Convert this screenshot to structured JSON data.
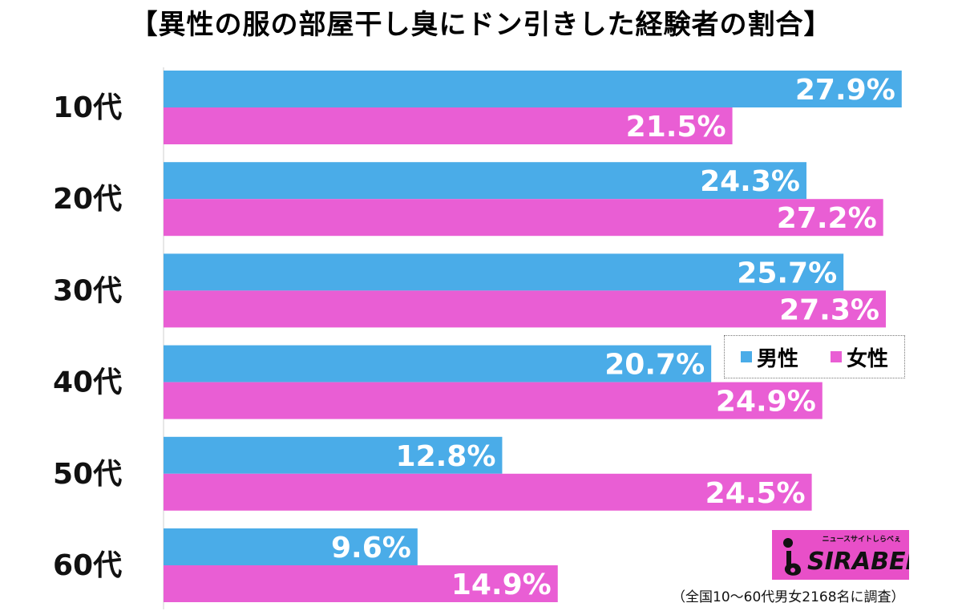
{
  "chart_data": {
    "type": "bar",
    "orientation": "horizontal",
    "title": "【異性の服の部屋干し臭にドン引きした経験者の割合】",
    "categories": [
      "10代",
      "20代",
      "30代",
      "40代",
      "50代",
      "60代"
    ],
    "series": [
      {
        "name": "男性",
        "color": "#4aace8",
        "values": [
          27.9,
          24.3,
          25.7,
          20.7,
          12.8,
          9.6
        ],
        "labels": [
          "27.9%",
          "24.3%",
          "25.7%",
          "20.7%",
          "12.8%",
          "9.6%"
        ]
      },
      {
        "name": "女性",
        "color": "#e95ed4",
        "values": [
          21.5,
          27.2,
          27.3,
          24.9,
          24.5,
          14.9
        ],
        "labels": [
          "21.5%",
          "27.2%",
          "27.3%",
          "24.9%",
          "24.5%",
          "14.9%"
        ]
      }
    ],
    "xlim": [
      0,
      30.3
    ],
    "xlabel": "",
    "ylabel": "",
    "grid": false,
    "legend_position": "right"
  },
  "logo": {
    "tagline": "ニュースサイトしらべぇ",
    "text": "SIRABEE"
  },
  "footnote": "（全国10〜60代男女2168名に調査）"
}
